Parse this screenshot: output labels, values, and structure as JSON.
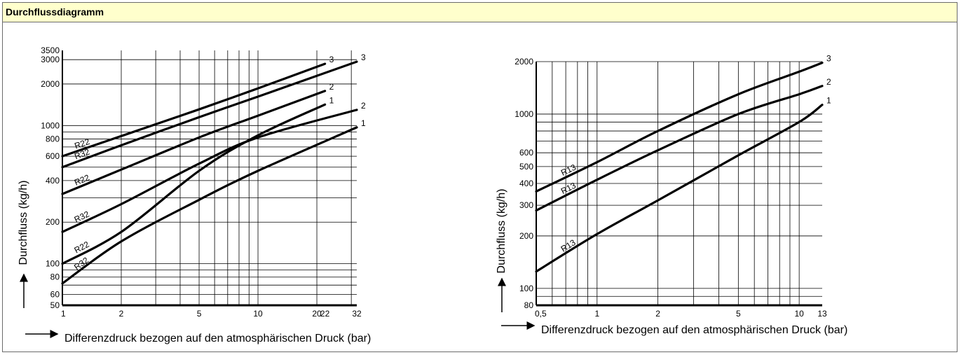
{
  "header": {
    "title": "Durchflussdiagramm"
  },
  "chart_data": [
    {
      "type": "line",
      "xscale": "log",
      "yscale": "log",
      "xlim": [
        1,
        32
      ],
      "ylim": [
        50,
        3500
      ],
      "xticks": [
        "1",
        "2",
        "5",
        "10",
        "20",
        "22",
        "32"
      ],
      "xtick_values": [
        1,
        2,
        5,
        10,
        20,
        22,
        32
      ],
      "yticks": [
        "3500",
        "3000",
        "2000",
        "1000",
        "800",
        "600",
        "400",
        "200",
        "100",
        "80",
        "60",
        "50"
      ],
      "ytick_values": [
        3500,
        3000,
        2000,
        1000,
        800,
        600,
        400,
        200,
        100,
        80,
        60,
        50
      ],
      "xlabel": "Differenzdruck bezogen auf den atmosphärischen Druck (bar)",
      "ylabel": "Durchfluss (kg/h)",
      "grid": true,
      "series": [
        {
          "name": "R22",
          "end_label": "3",
          "x": [
            1,
            2,
            5,
            10,
            22
          ],
          "y": [
            600,
            840,
            1310,
            1860,
            2800
          ]
        },
        {
          "name": "R32",
          "end_label": "3",
          "x": [
            1,
            2,
            5,
            10,
            32
          ],
          "y": [
            500,
            720,
            1150,
            1620,
            2900
          ]
        },
        {
          "name": "R22",
          "end_label": "2",
          "x": [
            1,
            2,
            5,
            10,
            22
          ],
          "y": [
            320,
            480,
            820,
            1180,
            1780
          ]
        },
        {
          "name": "R32",
          "end_label": "2",
          "x": [
            1,
            2,
            5,
            10,
            32
          ],
          "y": [
            170,
            270,
            530,
            820,
            1300
          ]
        },
        {
          "name": "R22",
          "end_label": "1",
          "x": [
            1,
            2,
            5,
            10,
            22
          ],
          "y": [
            100,
            170,
            470,
            850,
            1420
          ]
        },
        {
          "name": "R32",
          "end_label": "1",
          "x": [
            1,
            2,
            5,
            10,
            32
          ],
          "y": [
            72,
            145,
            290,
            470,
            970
          ]
        }
      ]
    },
    {
      "type": "line",
      "xscale": "log",
      "yscale": "log",
      "xlim": [
        0.5,
        13
      ],
      "ylim": [
        80,
        2000
      ],
      "xticks": [
        "0,5",
        "1",
        "2",
        "5",
        "10",
        "13"
      ],
      "xtick_values": [
        0.5,
        1,
        2,
        5,
        10,
        13
      ],
      "yticks": [
        "2000",
        "1000",
        "600",
        "500",
        "400",
        "300",
        "200",
        "100",
        "80"
      ],
      "ytick_values": [
        2000,
        1000,
        600,
        500,
        400,
        300,
        200,
        100,
        80
      ],
      "xlabel": "Differenzdruck bezogen auf den atmosphärischen Druck (bar)",
      "ylabel": "Durchfluss (kg/h)",
      "grid": true,
      "series": [
        {
          "name": "R13",
          "end_label": "3",
          "x": [
            0.5,
            1,
            2,
            5,
            10,
            13
          ],
          "y": [
            360,
            530,
            800,
            1300,
            1750,
            1970
          ]
        },
        {
          "name": "R13",
          "end_label": "2",
          "x": [
            0.5,
            1,
            2,
            5,
            10,
            13
          ],
          "y": [
            280,
            420,
            620,
            1000,
            1300,
            1450
          ]
        },
        {
          "name": "R13",
          "end_label": "1",
          "x": [
            0.5,
            1,
            2,
            5,
            10,
            13
          ],
          "y": [
            125,
            205,
            320,
            580,
            900,
            1130
          ]
        }
      ]
    }
  ]
}
